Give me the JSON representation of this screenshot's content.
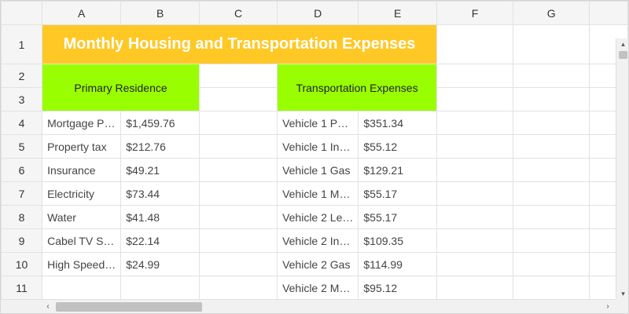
{
  "columns": [
    "A",
    "B",
    "C",
    "D",
    "E",
    "F",
    "G"
  ],
  "rows": [
    "1",
    "2",
    "3",
    "4",
    "5",
    "6",
    "7",
    "8",
    "9",
    "10",
    "11"
  ],
  "title": "Monthly Housing and Transportation Expenses",
  "sections": {
    "left": "Primary Residence",
    "right": "Transportation Expenses"
  },
  "data_rows": [
    {
      "a": "Mortgage P…",
      "b": "$1,459.76",
      "d": "Vehicle 1 P…",
      "e": "$351.34"
    },
    {
      "a": "Property tax",
      "b": "$212.76",
      "d": "Vehicle 1 In…",
      "e": "$55.12"
    },
    {
      "a": "Insurance",
      "b": "$49.21",
      "d": "Vehicle 1 Gas",
      "e": "$129.21"
    },
    {
      "a": "Electricity",
      "b": "$73.44",
      "d": "Vehicle 1 M…",
      "e": "$55.17"
    },
    {
      "a": "Water",
      "b": "$41.48",
      "d": "Vehicle 2 Le…",
      "e": "$55.17"
    },
    {
      "a": "Cabel TV S…",
      "b": "$22.14",
      "d": "Vehicle 2 In…",
      "e": "$109.35"
    },
    {
      "a": "High Speed…",
      "b": "$24.99",
      "d": "Vehicle 2 Gas",
      "e": "$114.99"
    },
    {
      "a": "",
      "b": "",
      "d": "Vehicle 2 M…",
      "e": "$95.12"
    }
  ],
  "colors": {
    "title_bg": "#ffc825",
    "section_bg": "#99ff00"
  },
  "scrollbar": {
    "left_icon": "‹",
    "right_icon": "›",
    "up_icon": "▴",
    "down_icon": "▾"
  }
}
